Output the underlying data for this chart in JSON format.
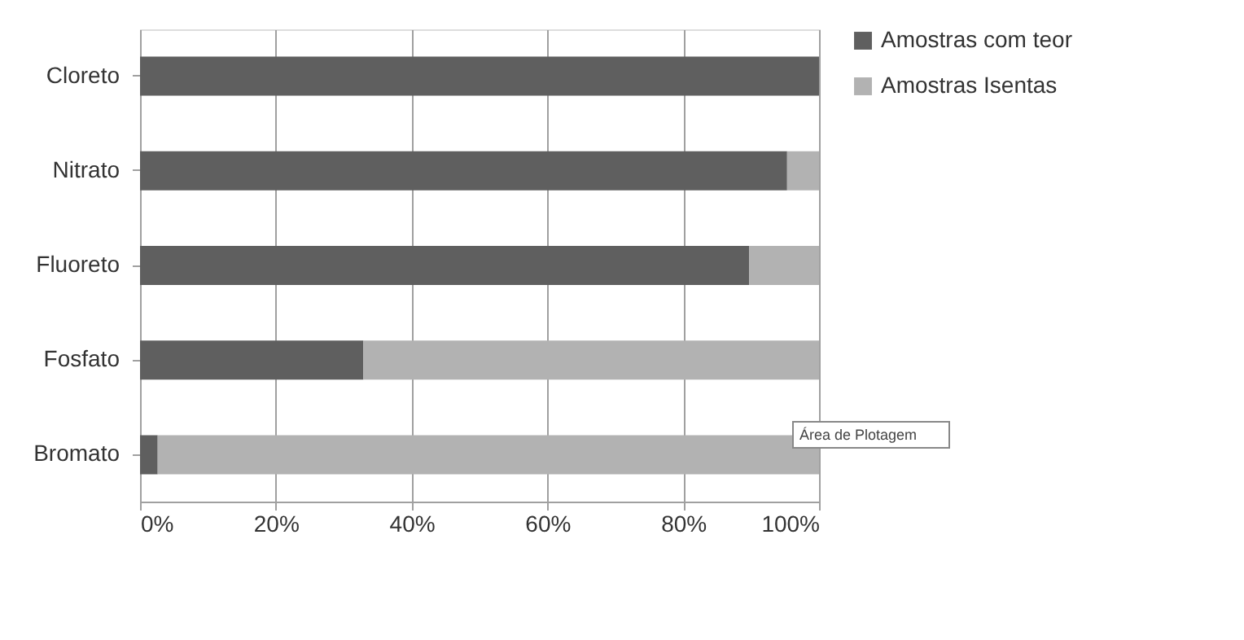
{
  "chart_data": {
    "type": "bar",
    "orientation": "horizontal",
    "stacked": true,
    "categories": [
      "Cloreto",
      "Nitrato",
      "Fluoreto",
      "Fosfato",
      "Bromato"
    ],
    "series": [
      {
        "name": "Amostras com teor",
        "color": "#5f5f5f",
        "values": [
          100,
          95.3,
          89.7,
          32.9,
          2.6
        ]
      },
      {
        "name": "Amostras Isentas",
        "color": "#b2b2b2",
        "values": [
          0,
          4.7,
          10.3,
          67.1,
          97.4
        ]
      }
    ],
    "xlim": [
      0,
      100
    ],
    "xticks": [
      {
        "value": 0,
        "label": "0%"
      },
      {
        "value": 20,
        "label": "20%"
      },
      {
        "value": 40,
        "label": "40%"
      },
      {
        "value": 60,
        "label": "60%"
      },
      {
        "value": 80,
        "label": "80%"
      },
      {
        "value": 100,
        "label": "100%"
      }
    ],
    "grid": "x",
    "legend": "right",
    "annotations": [
      "Área de Plotagem"
    ]
  }
}
